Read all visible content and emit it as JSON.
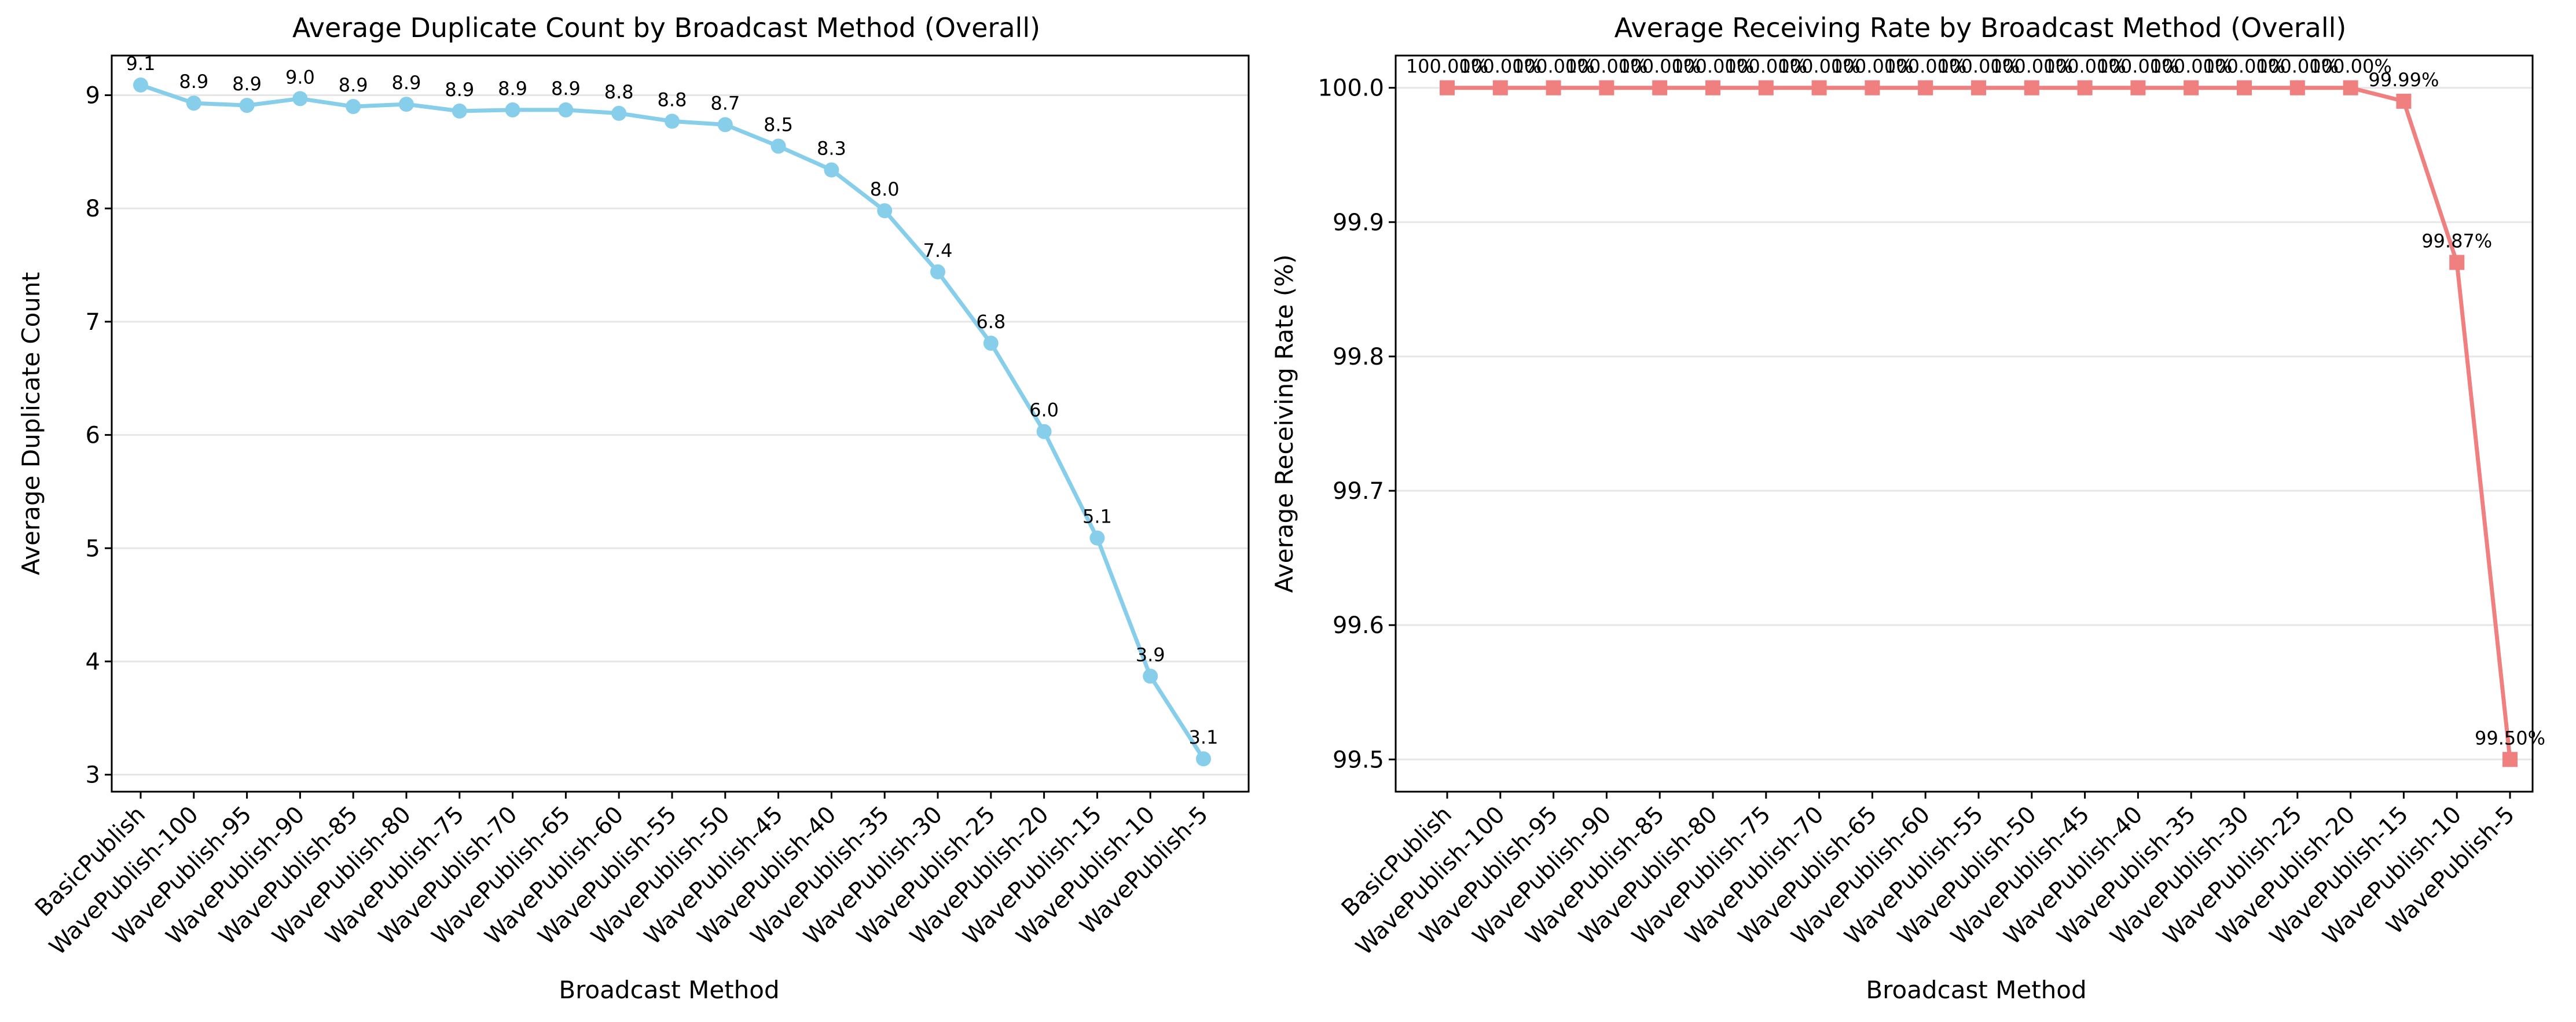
{
  "chart_data": [
    {
      "type": "line",
      "title": "Average Duplicate Count by Broadcast Method (Overall)",
      "xlabel": "Broadcast Method",
      "ylabel": "Average Duplicate Count",
      "categories": [
        "BasicPublish",
        "WavePublish-100",
        "WavePublish-95",
        "WavePublish-90",
        "WavePublish-85",
        "WavePublish-80",
        "WavePublish-75",
        "WavePublish-70",
        "WavePublish-65",
        "WavePublish-60",
        "WavePublish-55",
        "WavePublish-50",
        "WavePublish-45",
        "WavePublish-40",
        "WavePublish-35",
        "WavePublish-30",
        "WavePublish-25",
        "WavePublish-20",
        "WavePublish-15",
        "WavePublish-10",
        "WavePublish-5"
      ],
      "series": [
        {
          "values": [
            9.09,
            8.93,
            8.91,
            8.97,
            8.9,
            8.92,
            8.86,
            8.87,
            8.87,
            8.84,
            8.77,
            8.74,
            8.55,
            8.34,
            7.98,
            7.44,
            6.81,
            6.03,
            5.09,
            3.87,
            3.14
          ],
          "labels": [
            "9.1",
            "8.9",
            "8.9",
            "9.0",
            "8.9",
            "8.9",
            "8.9",
            "8.9",
            "8.9",
            "8.8",
            "8.8",
            "8.7",
            "8.5",
            "8.3",
            "8.0",
            "7.4",
            "6.8",
            "6.0",
            "5.1",
            "3.9",
            "3.1"
          ],
          "color": "#87ceeb",
          "marker": "circle"
        }
      ],
      "ylim": [
        2.85,
        9.35
      ],
      "yticks": [
        "3",
        "4",
        "5",
        "6",
        "7",
        "8",
        "9"
      ],
      "grid": "horizontal",
      "legend": "none"
    },
    {
      "type": "line",
      "title": "Average Receiving Rate by Broadcast Method (Overall)",
      "xlabel": "Broadcast Method",
      "ylabel": "Average Receiving Rate (%)",
      "categories": [
        "BasicPublish",
        "WavePublish-100",
        "WavePublish-95",
        "WavePublish-90",
        "WavePublish-85",
        "WavePublish-80",
        "WavePublish-75",
        "WavePublish-70",
        "WavePublish-65",
        "WavePublish-60",
        "WavePublish-55",
        "WavePublish-50",
        "WavePublish-45",
        "WavePublish-40",
        "WavePublish-35",
        "WavePublish-30",
        "WavePublish-25",
        "WavePublish-20",
        "WavePublish-15",
        "WavePublish-10",
        "WavePublish-5"
      ],
      "series": [
        {
          "values": [
            100.0,
            100.0,
            100.0,
            100.0,
            100.0,
            100.0,
            100.0,
            100.0,
            100.0,
            100.0,
            100.0,
            100.0,
            100.0,
            100.0,
            100.0,
            100.0,
            100.0,
            100.0,
            99.99,
            99.87,
            99.5
          ],
          "labels": [
            "100.00%",
            "100.00%",
            "100.00%",
            "100.00%",
            "100.00%",
            "100.00%",
            "100.00%",
            "100.00%",
            "100.00%",
            "100.00%",
            "100.00%",
            "100.00%",
            "100.00%",
            "100.00%",
            "100.00%",
            "100.00%",
            "100.00%",
            "100.00%",
            "99.99%",
            "99.87%",
            "99.50%"
          ],
          "color": "#f08080",
          "marker": "square"
        }
      ],
      "ylim": [
        99.476,
        100.024
      ],
      "yticks": [
        "99.5",
        "99.6",
        "99.7",
        "99.8",
        "99.9",
        "100.0"
      ],
      "grid": "horizontal",
      "legend": "none"
    }
  ]
}
